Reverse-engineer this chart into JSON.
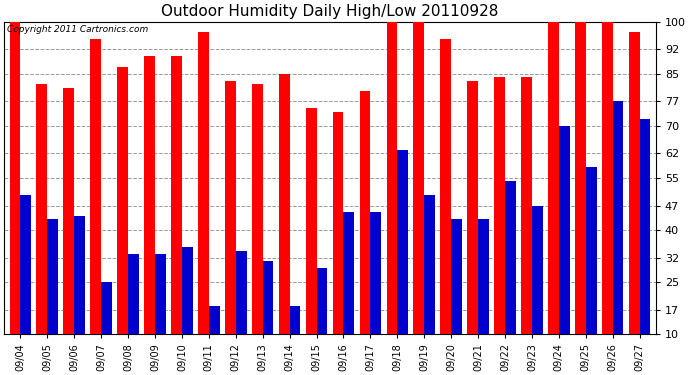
{
  "title": "Outdoor Humidity Daily High/Low 20110928",
  "copyright": "Copyright 2011 Cartronics.com",
  "dates": [
    "09/04",
    "09/05",
    "09/06",
    "09/07",
    "09/08",
    "09/09",
    "09/10",
    "09/11",
    "09/12",
    "09/13",
    "09/14",
    "09/15",
    "09/16",
    "09/17",
    "09/18",
    "09/19",
    "09/20",
    "09/21",
    "09/22",
    "09/23",
    "09/24",
    "09/25",
    "09/26",
    "09/27"
  ],
  "highs": [
    100,
    82,
    81,
    95,
    87,
    90,
    90,
    97,
    83,
    82,
    85,
    75,
    74,
    80,
    100,
    100,
    95,
    83,
    84,
    84,
    100,
    100,
    100,
    97
  ],
  "lows": [
    50,
    43,
    44,
    25,
    33,
    33,
    35,
    18,
    34,
    31,
    18,
    29,
    45,
    45,
    63,
    50,
    43,
    43,
    54,
    47,
    70,
    58,
    77,
    72
  ],
  "high_color": "#ff0000",
  "low_color": "#0000cc",
  "bg_color": "#ffffff",
  "plot_bg_color": "#ffffff",
  "grid_color": "#999999",
  "yticks": [
    10,
    17,
    25,
    32,
    40,
    47,
    55,
    62,
    70,
    77,
    85,
    92,
    100
  ],
  "ylim": [
    10,
    100
  ],
  "bar_width": 0.4,
  "figwidth": 6.9,
  "figheight": 3.75,
  "dpi": 100
}
